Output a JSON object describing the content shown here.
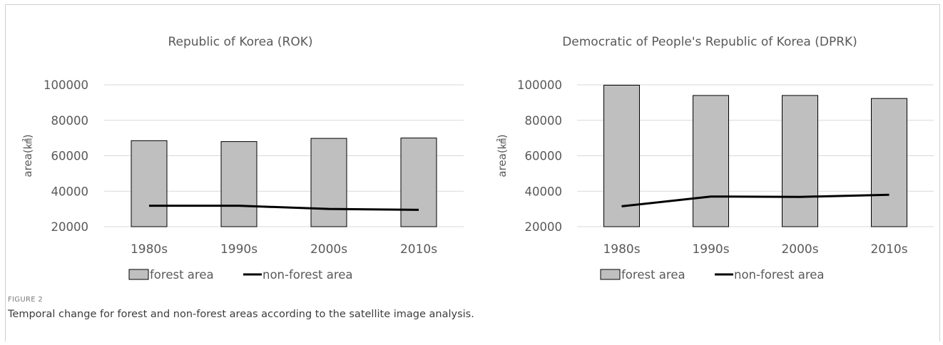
{
  "figure": {
    "label": "FIGURE 2",
    "caption": "Temporal change for forest and non-forest areas according to the satellite image analysis."
  },
  "chart_data": [
    {
      "type": "bar",
      "title": "Republic of Korea (ROK)",
      "xlabel": "",
      "ylabel": "area(㎢)",
      "categories": [
        "1980s",
        "1990s",
        "2000s",
        "2010s"
      ],
      "ylim": [
        20000,
        100000
      ],
      "yticks": [
        100000,
        80000,
        60000,
        40000,
        20000
      ],
      "grid": true,
      "legend": "bottom",
      "series": [
        {
          "name": "forest area",
          "kind": "bar",
          "color": "#bfbfbf",
          "values": [
            68500,
            68000,
            69800,
            70000
          ]
        },
        {
          "name": "non-forest area",
          "kind": "line",
          "color": "#000000",
          "values": [
            31800,
            31800,
            30000,
            29500
          ]
        }
      ]
    },
    {
      "type": "bar",
      "title": "Democratic of People's Republic of Korea (DPRK)",
      "xlabel": "",
      "ylabel": "area(㎢)",
      "categories": [
        "1980s",
        "1990s",
        "2000s",
        "2010s"
      ],
      "ylim": [
        20000,
        100000
      ],
      "yticks": [
        100000,
        80000,
        60000,
        40000,
        20000
      ],
      "grid": true,
      "legend": "bottom",
      "series": [
        {
          "name": "forest area",
          "kind": "bar",
          "color": "#bfbfbf",
          "values": [
            99800,
            94000,
            94000,
            92300
          ]
        },
        {
          "name": "non-forest area",
          "kind": "line",
          "color": "#000000",
          "values": [
            31500,
            37000,
            36800,
            38000
          ]
        }
      ]
    }
  ]
}
